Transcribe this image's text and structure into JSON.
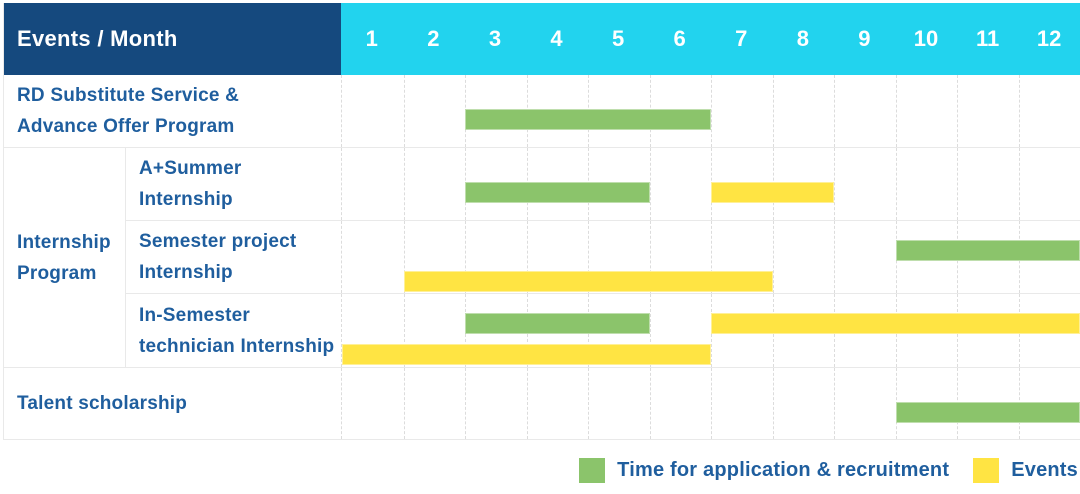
{
  "header": {
    "label": "Events / Month",
    "months": [
      "1",
      "2",
      "3",
      "4",
      "5",
      "6",
      "7",
      "8",
      "9",
      "10",
      "11",
      "12"
    ]
  },
  "colors": {
    "navy": "#15497E",
    "cyan": "#22D3EE",
    "blue": "#1F5E9E",
    "green": "#8BC46B",
    "yellow": "#FFE443",
    "grid": "#DCDCDC",
    "border": "#E9E9E9"
  },
  "rows": {
    "rd": {
      "line1": "RD Substitute Service &",
      "line2": "Advance Offer Program",
      "bars": [
        {
          "color": "green",
          "from": 3,
          "to": 6,
          "track": "single"
        }
      ]
    },
    "group": {
      "line1": "Internship",
      "line2": "Program"
    },
    "a_summer": {
      "line1": "A+Summer",
      "line2": "Internship",
      "bars": [
        {
          "color": "green",
          "from": 3,
          "to": 5,
          "track": "single"
        },
        {
          "color": "yellow",
          "from": 7,
          "to": 8,
          "track": "single"
        }
      ]
    },
    "semester_project": {
      "line1": "Semester project",
      "line2": "Internship",
      "bars": [
        {
          "color": "green",
          "from": 10,
          "to": 12,
          "track": "top"
        },
        {
          "color": "yellow",
          "from": 2,
          "to": 7,
          "track": "bottom"
        }
      ]
    },
    "in_semester": {
      "line1": "In-Semester",
      "line2": "technician Internship",
      "bars": [
        {
          "color": "green",
          "from": 3,
          "to": 5,
          "track": "top"
        },
        {
          "color": "yellow",
          "from": 7,
          "to": 12,
          "track": "top"
        },
        {
          "color": "yellow",
          "from": 1,
          "to": 6,
          "track": "bottom"
        }
      ]
    },
    "talent": {
      "line1": "Talent scholarship",
      "bars": [
        {
          "color": "green",
          "from": 10,
          "to": 12,
          "track": "single"
        }
      ]
    }
  },
  "legend": [
    {
      "color": "green",
      "label": "Time for application & recruitment"
    },
    {
      "color": "yellow",
      "label": "Events"
    }
  ],
  "chart_data": {
    "type": "table",
    "subtype": "gantt",
    "title": "Events / Month",
    "x_axis": {
      "label": "Month",
      "ticks": [
        1,
        2,
        3,
        4,
        5,
        6,
        7,
        8,
        9,
        10,
        11,
        12
      ],
      "range": [
        1,
        12
      ]
    },
    "grid": true,
    "legend_position": "bottom-right",
    "series_meaning": {
      "green": "Time for application & recruitment",
      "yellow": "Events"
    },
    "rows": [
      {
        "event": "RD Substitute Service & Advance Offer Program",
        "application_recruitment_months": [
          [
            3,
            6
          ]
        ],
        "events_months": []
      },
      {
        "event": "Internship Program - A+Summer Internship",
        "application_recruitment_months": [
          [
            3,
            5
          ]
        ],
        "events_months": [
          [
            7,
            8
          ]
        ]
      },
      {
        "event": "Internship Program - Semester project Internship",
        "application_recruitment_months": [
          [
            10,
            12
          ]
        ],
        "events_months": [
          [
            2,
            7
          ]
        ]
      },
      {
        "event": "Internship Program - In-Semester technician Internship",
        "application_recruitment_months": [
          [
            3,
            5
          ]
        ],
        "events_months": [
          [
            7,
            12
          ],
          [
            1,
            6
          ]
        ]
      },
      {
        "event": "Talent scholarship",
        "application_recruitment_months": [
          [
            10,
            12
          ]
        ],
        "events_months": []
      }
    ]
  }
}
